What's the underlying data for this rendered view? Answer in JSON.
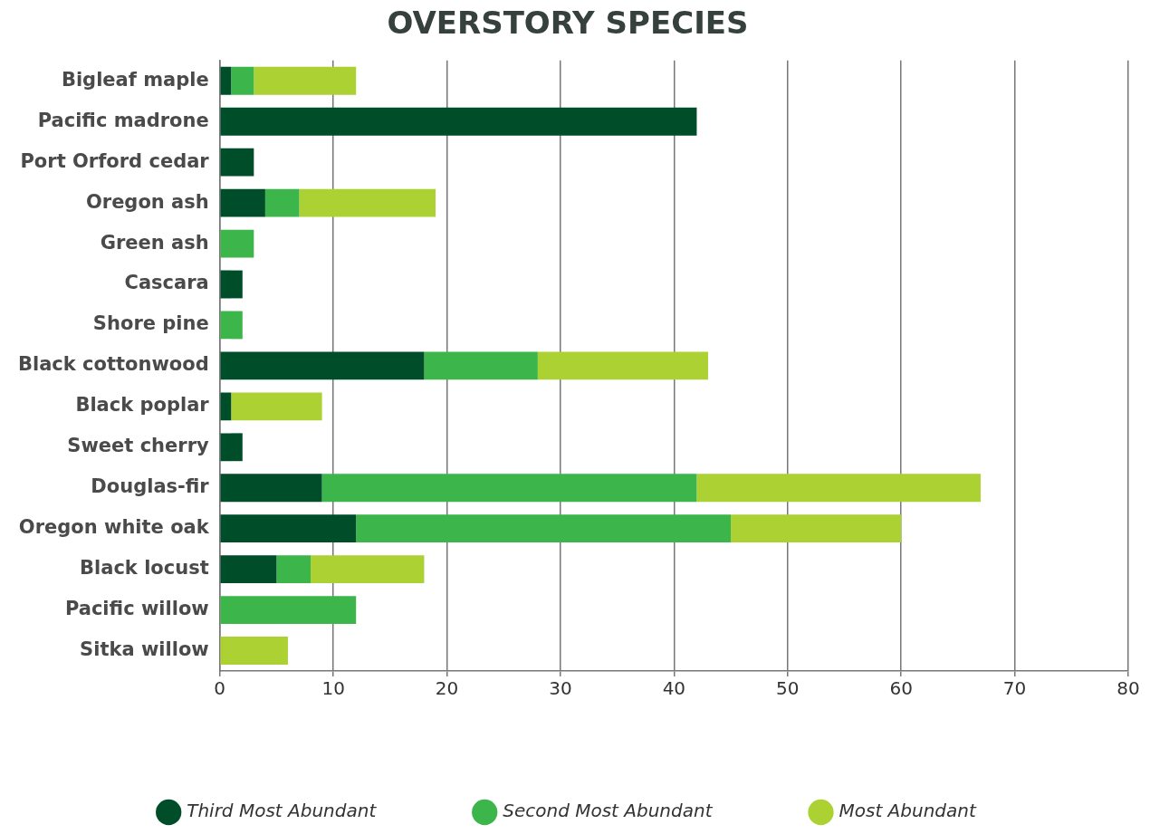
{
  "chart_data": {
    "type": "bar",
    "orientation": "horizontal",
    "stacked": true,
    "title": "OVERSTORY SPECIES",
    "categories": [
      "Bigleaf maple",
      "Pacific madrone",
      "Port Orford cedar",
      "Oregon ash",
      "Green ash",
      "Cascara",
      "Shore pine",
      "Black cottonwood",
      "Black poplar",
      "Sweet cherry",
      "Douglas-fir",
      "Oregon white oak",
      "Black locust",
      "Pacific willow",
      "Sitka willow"
    ],
    "series": [
      {
        "name": "Third Most Abundant",
        "color": "#004d2a",
        "values": [
          1,
          42,
          3,
          4,
          0,
          2,
          0,
          18,
          1,
          2,
          9,
          12,
          5,
          0,
          0
        ]
      },
      {
        "name": "Second Most Abundant",
        "color": "#3cb54a",
        "values": [
          2,
          0,
          0,
          3,
          3,
          0,
          2,
          10,
          0,
          0,
          33,
          33,
          3,
          12,
          0
        ]
      },
      {
        "name": "Most Abundant",
        "color": "#acd133",
        "values": [
          9,
          0,
          0,
          12,
          0,
          0,
          0,
          15,
          8,
          0,
          25,
          15,
          10,
          0,
          6
        ]
      }
    ],
    "xlim": [
      0,
      80
    ],
    "xticks": [
      0,
      10,
      20,
      30,
      40,
      50,
      60,
      70,
      80
    ],
    "grid": "x",
    "legend": "bottom"
  }
}
